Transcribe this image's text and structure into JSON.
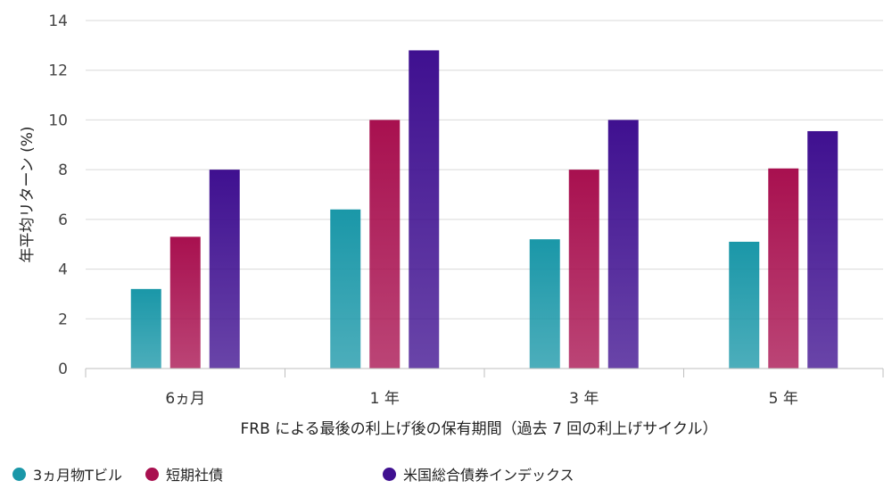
{
  "chart_data": {
    "type": "bar",
    "categories": [
      "6ヵ月",
      "1 年",
      "3 年",
      "5 年"
    ],
    "series": [
      {
        "name": "3ヵ月物Tビル",
        "values": [
          3.2,
          6.4,
          5.2,
          5.1
        ],
        "color": "#1a97a8"
      },
      {
        "name": "短期社債",
        "values": [
          5.3,
          10.0,
          8.0,
          8.05
        ],
        "color": "#a8104f"
      },
      {
        "name": "米国総合債券インデックス",
        "values": [
          8.0,
          12.8,
          10.0,
          9.55
        ],
        "color": "#3f1090"
      }
    ],
    "xlabel": "FRB による最後の利上げ後の保有期間（過去 7 回の利上げサイクル）",
    "ylabel": "年平均リターン (%)",
    "ylim": [
      0,
      14
    ],
    "yticks": [
      "0",
      "2",
      "4",
      "6",
      "8",
      "10",
      "12",
      "14"
    ],
    "grid": true,
    "legend": "bottom"
  }
}
